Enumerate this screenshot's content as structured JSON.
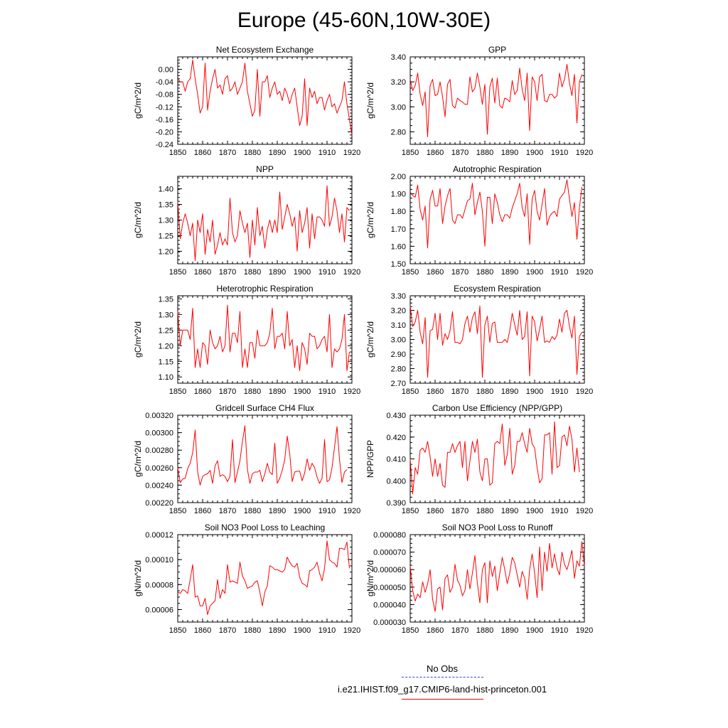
{
  "page": {
    "title": "Europe (45-60N,10W-30E)"
  },
  "legend": {
    "obs_label": "No Obs",
    "obs_color": "#4444ff",
    "model_label": "i.e21.IHIST.f09_g17.CMIP6-land-hist-princeton.001",
    "model_color": "#ff0000"
  },
  "chart_data": [
    {
      "type": "line",
      "title": "Net Ecosystem Exchange",
      "ylabel": "gC/m^2/d",
      "xlim": [
        1850,
        1920
      ],
      "ylim": [
        -0.24,
        0.04
      ],
      "xticks": [
        1850,
        1860,
        1870,
        1880,
        1890,
        1900,
        1910,
        1920
      ],
      "yticks": [
        "0.00",
        "-0.04",
        "-0.08",
        "-0.12",
        "-0.16",
        "-0.20",
        "-0.24"
      ],
      "series": [
        {
          "x_start": 1850,
          "values": [
            -0.03,
            -0.04,
            -0.04,
            -0.07,
            -0.04,
            -0.03,
            0.03,
            -0.03,
            -0.08,
            -0.14,
            -0.12,
            0.02,
            -0.13,
            -0.07,
            -0.03,
            0.0,
            -0.06,
            -0.05,
            -0.08,
            -0.03,
            -0.02,
            -0.07,
            -0.06,
            -0.04,
            -0.08,
            -0.06,
            -0.04,
            0.02,
            -0.07,
            -0.11,
            -0.15,
            -0.13,
            0.0,
            -0.15,
            -0.04,
            -0.04,
            -0.02,
            -0.09,
            -0.06,
            -0.04,
            -0.08,
            -0.07,
            -0.1,
            -0.06,
            -0.08,
            -0.11,
            -0.08,
            -0.06,
            -0.12,
            -0.18,
            -0.15,
            -0.03,
            -0.18,
            -0.06,
            -0.09,
            -0.07,
            -0.11,
            -0.09,
            -0.09,
            -0.13,
            -0.1,
            -0.08,
            -0.12,
            -0.11,
            -0.14,
            -0.12,
            -0.1,
            -0.04,
            -0.11,
            -0.16,
            -0.21
          ]
        }
      ]
    },
    {
      "type": "line",
      "title": "GPP",
      "ylabel": "gC/m^2/d",
      "xlim": [
        1850,
        1920
      ],
      "ylim": [
        2.7,
        3.4
      ],
      "xticks": [
        1850,
        1860,
        1870,
        1880,
        1890,
        1900,
        1910,
        1920
      ],
      "yticks": [
        "3.40",
        "3.20",
        "3.00",
        "2.80"
      ],
      "series": [
        {
          "x_start": 1850,
          "values": [
            3.22,
            3.13,
            3.17,
            3.27,
            3.1,
            3.01,
            3.12,
            2.76,
            3.17,
            3.22,
            3.09,
            3.1,
            3.2,
            3.08,
            2.92,
            3.18,
            3.22,
            3.01,
            2.99,
            3.07,
            3.05,
            3.04,
            3.02,
            3.02,
            3.24,
            3.12,
            3.15,
            3.27,
            3.16,
            3.02,
            3.18,
            2.78,
            3.16,
            3.23,
            3.03,
            3.23,
            3.01,
            2.99,
            3.07,
            3.06,
            3.04,
            3.21,
            3.1,
            3.13,
            3.31,
            3.14,
            3.05,
            3.27,
            2.81,
            3.24,
            3.2,
            3.05,
            3.24,
            3.26,
            3.05,
            3.04,
            3.1,
            3.1,
            3.07,
            3.09,
            3.27,
            3.16,
            3.22,
            3.34,
            3.19,
            3.09,
            3.26,
            2.87,
            3.2,
            3.26
          ]
        }
      ]
    },
    {
      "type": "line",
      "title": "NPP",
      "ylabel": "gC/m^2/d",
      "xlim": [
        1850,
        1920
      ],
      "ylim": [
        1.16,
        1.44
      ],
      "xticks": [
        1850,
        1860,
        1870,
        1880,
        1890,
        1900,
        1910,
        1920
      ],
      "yticks": [
        "1.40",
        "1.35",
        "1.30",
        "1.25",
        "1.20"
      ],
      "series": [
        {
          "x_start": 1850,
          "values": [
            1.36,
            1.24,
            1.29,
            1.32,
            1.29,
            1.25,
            1.29,
            1.17,
            1.3,
            1.26,
            1.32,
            1.19,
            1.27,
            1.23,
            1.3,
            1.19,
            1.22,
            1.26,
            1.22,
            1.24,
            1.22,
            1.37,
            1.26,
            1.23,
            1.25,
            1.33,
            1.29,
            1.26,
            1.29,
            1.18,
            1.3,
            1.22,
            1.34,
            1.25,
            1.28,
            1.21,
            1.27,
            1.3,
            1.26,
            1.3,
            1.26,
            1.39,
            1.27,
            1.31,
            1.35,
            1.32,
            1.28,
            1.31,
            1.2,
            1.33,
            1.26,
            1.29,
            1.34,
            1.21,
            1.32,
            1.24,
            1.31,
            1.31,
            1.3,
            1.28,
            1.41,
            1.28,
            1.31,
            1.37,
            1.33,
            1.26,
            1.32,
            1.23,
            1.34,
            1.33
          ]
        }
      ]
    },
    {
      "type": "line",
      "title": "Autotrophic Respiration",
      "ylabel": "gC/m^2/d",
      "xlim": [
        1850,
        1920
      ],
      "ylim": [
        1.5,
        2.0
      ],
      "xticks": [
        1850,
        1860,
        1870,
        1880,
        1890,
        1900,
        1910,
        1920
      ],
      "yticks": [
        "2.00",
        "1.90",
        "1.80",
        "1.70",
        "1.60",
        "1.50"
      ],
      "series": [
        {
          "x_start": 1850,
          "values": [
            1.91,
            1.89,
            1.88,
            1.95,
            1.81,
            1.75,
            1.83,
            1.59,
            1.87,
            1.92,
            1.83,
            1.83,
            1.93,
            1.73,
            1.83,
            1.89,
            1.93,
            1.75,
            1.73,
            1.78,
            1.78,
            1.76,
            1.81,
            1.86,
            1.87,
            1.96,
            1.78,
            1.85,
            1.91,
            1.8,
            1.6,
            1.88,
            1.88,
            1.73,
            1.9,
            1.85,
            1.78,
            1.74,
            1.78,
            1.78,
            1.76,
            1.82,
            1.86,
            1.9,
            1.96,
            1.82,
            1.77,
            1.9,
            1.61,
            1.87,
            1.92,
            1.8,
            1.75,
            1.84,
            1.93,
            1.72,
            1.77,
            1.79,
            1.8,
            1.77,
            1.87,
            1.89,
            1.91,
            1.98,
            1.87,
            1.77,
            1.85,
            1.64,
            1.82,
            1.94
          ]
        }
      ]
    },
    {
      "type": "line",
      "title": "Heterotrophic Respiration",
      "ylabel": "gC/m^2/d",
      "xlim": [
        1850,
        1920
      ],
      "ylim": [
        1.08,
        1.36
      ],
      "xticks": [
        1850,
        1860,
        1870,
        1880,
        1890,
        1900,
        1910,
        1920
      ],
      "yticks": [
        "1.35",
        "1.30",
        "1.25",
        "1.20",
        "1.15",
        "1.10"
      ],
      "series": [
        {
          "x_start": 1850,
          "values": [
            1.31,
            1.2,
            1.25,
            1.25,
            1.25,
            1.22,
            1.32,
            1.13,
            1.19,
            1.13,
            1.21,
            1.2,
            1.14,
            1.25,
            1.21,
            1.19,
            1.2,
            1.23,
            1.18,
            1.2,
            1.33,
            1.18,
            1.24,
            1.24,
            1.21,
            1.31,
            1.13,
            1.19,
            1.13,
            1.21,
            1.21,
            1.16,
            1.25,
            1.2,
            1.2,
            1.2,
            1.21,
            1.24,
            1.32,
            1.19,
            1.23,
            1.23,
            1.24,
            1.19,
            1.31,
            1.2,
            1.22,
            1.13,
            1.2,
            1.12,
            1.21,
            1.19,
            1.14,
            1.24,
            1.23,
            1.23,
            1.19,
            1.2,
            1.22,
            1.23,
            1.18,
            1.3,
            1.13,
            1.19,
            1.18,
            1.19,
            1.22,
            1.3,
            1.12,
            1.18
          ]
        }
      ]
    },
    {
      "type": "line",
      "title": "Ecosystem Respiration",
      "ylabel": "gC/m^2/d",
      "xlim": [
        1850,
        1920
      ],
      "ylim": [
        2.7,
        3.3
      ],
      "xticks": [
        1850,
        1860,
        1870,
        1880,
        1890,
        1900,
        1910,
        1920
      ],
      "yticks": [
        "3.30",
        "3.20",
        "3.10",
        "3.00",
        "2.90",
        "2.80",
        "2.70"
      ],
      "series": [
        {
          "x_start": 1850,
          "values": [
            3.23,
            3.09,
            3.12,
            3.2,
            3.05,
            2.97,
            3.15,
            2.74,
            3.06,
            3.07,
            3.18,
            3.0,
            3.18,
            2.96,
            3.04,
            3.0,
            3.06,
            3.19,
            2.98,
            2.98,
            2.97,
            3.0,
            3.11,
            3.16,
            3.05,
            3.15,
            3.19,
            3.04,
            3.23,
            2.74,
            3.1,
            3.16,
            2.98,
            3.11,
            3.12,
            2.98,
            2.98,
            2.98,
            3.0,
            2.98,
            3.06,
            3.18,
            3.1,
            3.03,
            3.2,
            3.0,
            3.02,
            3.19,
            2.75,
            3.16,
            3.12,
            2.99,
            3.07,
            3.16,
            2.98,
            2.99,
            2.98,
            3.02,
            3.0,
            3.03,
            3.14,
            3.05,
            3.18,
            3.2,
            3.09,
            3.01,
            3.16,
            2.76,
            3.02,
            3.05
          ]
        }
      ]
    },
    {
      "type": "line",
      "title": "Gridcell Surface CH4 Flux",
      "ylabel": "gC/m^2/d",
      "xlim": [
        1850,
        1920
      ],
      "ylim": [
        0.0022,
        0.0032
      ],
      "xticks": [
        1850,
        1860,
        1870,
        1880,
        1890,
        1900,
        1910,
        1920
      ],
      "yticks": [
        "0.00320",
        "0.00300",
        "0.00280",
        "0.00260",
        "0.00240",
        "0.00220"
      ],
      "series": [
        {
          "x_start": 1850,
          "values": [
            0.0026,
            0.00243,
            0.00247,
            0.00248,
            0.00259,
            0.00265,
            0.00277,
            0.00303,
            0.00255,
            0.0024,
            0.0025,
            0.00252,
            0.00253,
            0.00257,
            0.00242,
            0.00262,
            0.00268,
            0.0025,
            0.00252,
            0.0025,
            0.00244,
            0.0025,
            0.00292,
            0.00243,
            0.00255,
            0.00268,
            0.0029,
            0.00308,
            0.00258,
            0.00242,
            0.00253,
            0.00255,
            0.00255,
            0.00257,
            0.00244,
            0.00253,
            0.00265,
            0.00255,
            0.00252,
            0.00288,
            0.00242,
            0.00248,
            0.00257,
            0.00269,
            0.00296,
            0.00276,
            0.00244,
            0.00255,
            0.00256,
            0.00256,
            0.00245,
            0.00254,
            0.0027,
            0.00257,
            0.00265,
            0.0026,
            0.00249,
            0.00242,
            0.00248,
            0.00292,
            0.00244,
            0.00246,
            0.0026,
            0.00283,
            0.00307,
            0.0027,
            0.00243,
            0.00255,
            0.00258
          ]
        }
      ]
    },
    {
      "type": "line",
      "title": "Carbon Use Efficiency (NPP/GPP)",
      "ylabel": "NPP/GPP",
      "xlim": [
        1850,
        1920
      ],
      "ylim": [
        0.39,
        0.43
      ],
      "xticks": [
        1850,
        1860,
        1870,
        1880,
        1890,
        1900,
        1910,
        1920
      ],
      "yticks": [
        "0.430",
        "0.420",
        "0.410",
        "0.400",
        "0.390"
      ],
      "series": [
        {
          "x_start": 1850,
          "values": [
            0.41,
            0.394,
            0.406,
            0.403,
            0.414,
            0.415,
            0.413,
            0.418,
            0.411,
            0.402,
            0.41,
            0.402,
            0.408,
            0.398,
            0.397,
            0.413,
            0.413,
            0.417,
            0.413,
            0.416,
            0.418,
            0.406,
            0.418,
            0.4,
            0.409,
            0.418,
            0.413,
            0.419,
            0.404,
            0.4,
            0.41,
            0.41,
            0.398,
            0.399,
            0.417,
            0.418,
            0.417,
            0.426,
            0.407,
            0.412,
            0.424,
            0.403,
            0.407,
            0.418,
            0.418,
            0.422,
            0.417,
            0.413,
            0.424,
            0.417,
            0.415,
            0.406,
            0.399,
            0.401,
            0.421,
            0.421,
            0.422,
            0.403,
            0.427,
            0.406,
            0.407,
            0.42,
            0.421,
            0.416,
            0.425,
            0.419,
            0.404,
            0.415,
            0.404
          ]
        }
      ]
    },
    {
      "type": "line",
      "title": "Soil NO3 Pool Loss to Leaching",
      "ylabel": "gN/m^2/d",
      "xlim": [
        1850,
        1920
      ],
      "ylim": [
        5e-05,
        0.00012
      ],
      "xticks": [
        1850,
        1860,
        1870,
        1880,
        1890,
        1900,
        1910,
        1920
      ],
      "yticks": [
        "0.00012",
        "0.00010",
        "0.00008",
        "0.00006"
      ],
      "series": [
        {
          "x_start": 1850,
          "values": [
            7.4e-05,
            7.3e-05,
            7.6e-05,
            7.5e-05,
            7.3e-05,
            8.4e-05,
            9.6e-05,
            7e-05,
            7.1e-05,
            6.3e-05,
            6.3e-05,
            6.9e-05,
            5.6e-05,
            6.3e-05,
            6.5e-05,
            6.7e-05,
            8.4e-05,
            6.9e-05,
            7.6e-05,
            7.3e-05,
            9.6e-05,
            8.2e-05,
            8.3e-05,
            8.2e-05,
            8.1e-05,
            9.8e-05,
            8.7e-05,
            8.3e-05,
            7.7e-05,
            7.8e-05,
            7.9e-05,
            8.2e-05,
            8.3e-05,
            7.4e-05,
            6.3e-05,
            7.4e-05,
            7.9e-05,
            9.5e-05,
            9.4e-05,
            9.2e-05,
            9.2e-05,
            9.1e-05,
            9e-05,
            9.2e-05,
            0.000102,
            9.8e-05,
            9.5e-05,
            9.4e-05,
            9.7e-05,
            8.6e-05,
            8.1e-05,
            8e-05,
            7.8e-05,
            9.1e-05,
            9.2e-05,
            9.4e-05,
            9.8e-05,
            8.9e-05,
            8.3e-05,
            9.3e-05,
            0.000115,
            0.0001,
            9.8e-05,
            9.7e-05,
            9.4e-05,
            0.000109,
            0.000109,
            0.000108,
            0.000114,
            9.3e-05
          ]
        }
      ]
    },
    {
      "type": "line",
      "title": "Soil NO3 Pool Loss to Runoff",
      "ylabel": "gN/m^2/d",
      "xlim": [
        1850,
        1920
      ],
      "ylim": [
        3e-05,
        8e-05
      ],
      "xticks": [
        1850,
        1860,
        1870,
        1880,
        1890,
        1900,
        1910,
        1920
      ],
      "yticks": [
        "0.000080",
        "0.000070",
        "0.000060",
        "0.000050",
        "0.000040",
        "0.000030"
      ],
      "series": [
        {
          "x_start": 1850,
          "values": [
            6.2e-05,
            4.8e-05,
            4.2e-05,
            4.6e-05,
            4.4e-05,
            5.3e-05,
            4.7e-05,
            5.2e-05,
            6e-05,
            4.3e-05,
            3.6e-05,
            4.9e-05,
            5e-05,
            3.7e-05,
            5.5e-05,
            5.7e-05,
            4.7e-05,
            5e-05,
            6.3e-05,
            5.4e-05,
            5.1e-05,
            4.5e-05,
            4.8e-05,
            6e-05,
            4.9e-05,
            5.8e-05,
            6.8e-05,
            5.2e-05,
            4.1e-05,
            6e-05,
            6.4e-05,
            4.1e-05,
            6.5e-05,
            5.6e-05,
            6.2e-05,
            4.8e-05,
            5.8e-05,
            6.7e-05,
            6e-05,
            5.2e-05,
            5.8e-05,
            6.7e-05,
            6.4e-05,
            5.7e-05,
            5e-05,
            5.9e-05,
            5.5e-05,
            4.3e-05,
            6e-05,
            6.9e-05,
            5.8e-05,
            4.4e-05,
            7.3e-05,
            4.8e-05,
            7e-05,
            5.9e-05,
            7.5e-05,
            6.1e-05,
            6.9e-05,
            6.1e-05,
            5.7e-05,
            7e-05,
            6.3e-05,
            6e-05,
            6.5e-05,
            7.1e-05,
            5.5e-05,
            6.5e-05,
            6.2e-05,
            7.6e-05,
            6.2e-05
          ]
        }
      ]
    }
  ]
}
